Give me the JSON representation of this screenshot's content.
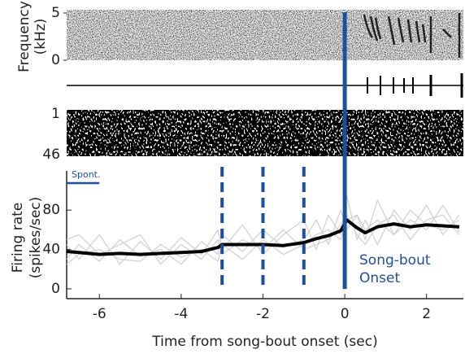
{
  "chart_data": {
    "type": "line",
    "xlabel": "Time from song-bout onset (sec)",
    "ylabel": [
      "Firing rate",
      "(spikes/sec)"
    ],
    "xlim": [
      -6.8,
      2.9
    ],
    "xticks": [
      -6,
      -4,
      -2,
      0,
      2
    ],
    "ylim": [
      -10,
      124
    ],
    "yticks": [
      0,
      40,
      80
    ],
    "x": [
      -6.8,
      -6.5,
      -6,
      -5.5,
      -5,
      -4.5,
      -4,
      -3.5,
      -3.1,
      -3,
      -2.5,
      -2,
      -1.5,
      -1,
      -0.7,
      -0.4,
      -0.1,
      0.05,
      0.3,
      0.5,
      0.8,
      1.2,
      1.6,
      2,
      2.4,
      2.8
    ],
    "series": [
      {
        "color": "#cfcfcf",
        "values": [
          30,
          45,
          28,
          50,
          33,
          40,
          25,
          48,
          35,
          55,
          38,
          60,
          42,
          50,
          70,
          45,
          80,
          60,
          75,
          50,
          90,
          55,
          70,
          60,
          85,
          58
        ]
      },
      {
        "color": "#cfcfcf",
        "values": [
          45,
          30,
          55,
          25,
          48,
          30,
          52,
          35,
          60,
          40,
          65,
          35,
          55,
          70,
          40,
          75,
          55,
          95,
          50,
          70,
          45,
          80,
          60,
          85,
          55,
          75
        ]
      },
      {
        "color": "#cfcfcf",
        "values": [
          25,
          35,
          40,
          30,
          28,
          45,
          32,
          40,
          28,
          45,
          30,
          50,
          35,
          45,
          55,
          60,
          50,
          70,
          75,
          60,
          70,
          55,
          80,
          65,
          60,
          70
        ]
      },
      {
        "color": "#cfcfcf",
        "values": [
          50,
          55,
          35,
          45,
          55,
          25,
          45,
          30,
          50,
          35,
          50,
          40,
          60,
          40,
          45,
          50,
          65,
          75,
          55,
          45,
          65,
          75,
          50,
          70,
          75,
          55
        ]
      },
      {
        "color": "#000000",
        "values": [
          38,
          37,
          35,
          36,
          35,
          36,
          37,
          38,
          42,
          45,
          45,
          45,
          44,
          47,
          51,
          54,
          59,
          70,
          62,
          57,
          63,
          66,
          63,
          65,
          64,
          63
        ]
      }
    ],
    "marker_color": "#1f4e9c",
    "markers": [
      {
        "x": 0,
        "style": "solid"
      },
      {
        "x": -3,
        "style": "dashed"
      },
      {
        "x": -2,
        "style": "dashed"
      },
      {
        "x": -1,
        "style": "dashed"
      }
    ],
    "annotation": [
      "Song-bout",
      "Onset"
    ],
    "spont": {
      "label": "Spont.",
      "x": [
        -6.8,
        -6
      ]
    }
  },
  "spectrogram": {
    "ylabel": [
      "Frequency",
      "(kHz)"
    ],
    "ylim": [
      0,
      5
    ],
    "yticks": [
      0,
      5
    ]
  },
  "raster": {
    "ylim": [
      1,
      46
    ],
    "yticks": [
      1,
      46
    ]
  }
}
